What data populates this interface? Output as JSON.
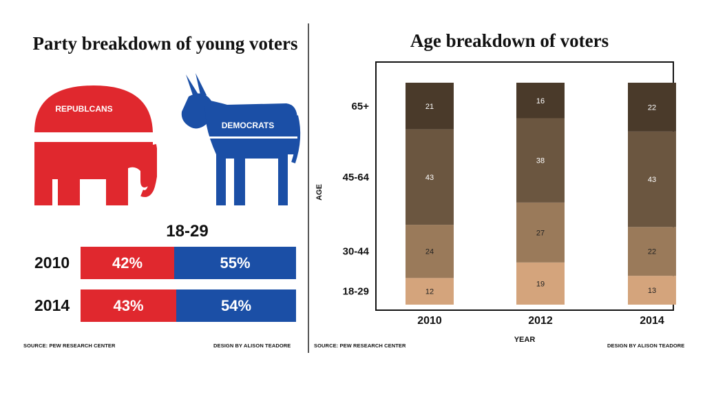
{
  "left": {
    "title": "Party breakdown of young voters",
    "republicans_label": "REPUBLCANS",
    "democrats_label": "DEMOCRATS",
    "age_group": "18-29",
    "rows": [
      {
        "year": "2010",
        "republican": 42,
        "democrat": 55,
        "republican_label": "42%",
        "democrat_label": "55%"
      },
      {
        "year": "2014",
        "republican": 43,
        "democrat": 54,
        "republican_label": "43%",
        "democrat_label": "54%"
      }
    ],
    "source": "SOURCE: PEW RESEARCH CENTER",
    "design": "DESIGN BY ALISON TEADORE",
    "colors": {
      "republican": "#e0282e",
      "democrat": "#1b4fa6"
    }
  },
  "right": {
    "title": "Age breakdown of voters",
    "source": "SOURCE: PEW RESEARCH CENTER",
    "design": "DESIGN BY ALISON TEADORE"
  },
  "chart_data": [
    {
      "type": "bar",
      "stacked": true,
      "orientation": "horizontal",
      "title": "Party breakdown of young voters",
      "subtitle": "18-29",
      "categories": [
        "2010",
        "2014"
      ],
      "series": [
        {
          "name": "REPUBLCANS",
          "values": [
            42,
            43
          ],
          "color": "#e0282e"
        },
        {
          "name": "DEMOCRATS",
          "values": [
            55,
            54
          ],
          "color": "#1b4fa6"
        }
      ],
      "units": "%"
    },
    {
      "type": "bar",
      "stacked": true,
      "title": "Age breakdown of voters",
      "xlabel": "YEAR",
      "ylabel": "AGE",
      "categories": [
        "2010",
        "2012",
        "2014"
      ],
      "series": [
        {
          "name": "18-29",
          "values": [
            12,
            19,
            13
          ],
          "color": "#d4a47c"
        },
        {
          "name": "30-44",
          "values": [
            24,
            27,
            22
          ],
          "color": "#9a7a5a"
        },
        {
          "name": "45-64",
          "values": [
            43,
            38,
            43
          ],
          "color": "#6b5640"
        },
        {
          "name": "65+",
          "values": [
            21,
            16,
            22
          ],
          "color": "#4a3a2a"
        }
      ],
      "ylim": [
        0,
        100
      ],
      "grid": false,
      "legend": "none"
    }
  ]
}
